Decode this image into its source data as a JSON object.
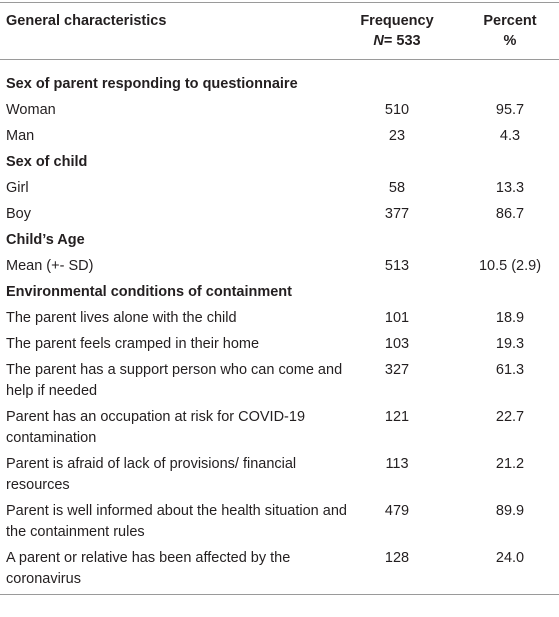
{
  "header": {
    "characteristics": "General characteristics",
    "frequency": "Frequency",
    "n_symbol": "N",
    "n_value": "= 533",
    "percent": "Percent",
    "percent_symbol": "%"
  },
  "sections": [
    {
      "title": "Sex of parent responding to questionnaire",
      "rows": [
        [
          "Woman",
          "510",
          "95.7"
        ],
        [
          "Man",
          "23",
          "4.3"
        ]
      ]
    },
    {
      "title": "Sex of child",
      "rows": [
        [
          "Girl",
          "58",
          "13.3"
        ],
        [
          "Boy",
          "377",
          "86.7"
        ]
      ]
    },
    {
      "title": "Child’s Age",
      "rows": [
        [
          "Mean (+- SD)",
          "513",
          "10.5 (2.9)"
        ]
      ]
    },
    {
      "title": "Environmental conditions of containment",
      "rows": [
        [
          "The parent lives alone with the child",
          "101",
          "18.9"
        ],
        [
          "The parent feels cramped in their home",
          "103",
          "19.3"
        ],
        [
          "The parent has a support person who can come and help if needed",
          "327",
          "61.3"
        ],
        [
          "Parent has an occupation at risk for COVID-19 contamination",
          "121",
          "22.7"
        ],
        [
          "Parent is afraid of lack of provisions/ financial resources",
          "113",
          "21.2"
        ],
        [
          "Parent is well informed about the health situation and the containment rules",
          "479",
          "89.9"
        ],
        [
          "A parent or relative has been affected by the coronavirus",
          "128",
          "24.0"
        ]
      ]
    }
  ]
}
